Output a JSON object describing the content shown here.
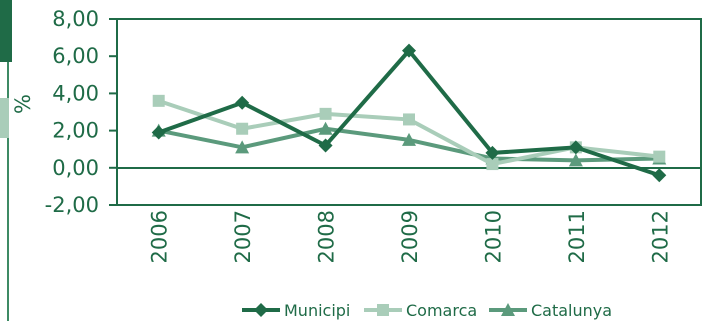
{
  "chart_data": {
    "type": "line",
    "title": "",
    "xlabel": "",
    "ylabel": "%",
    "categories": [
      "2006",
      "2007",
      "2008",
      "2009",
      "2010",
      "2011",
      "2012"
    ],
    "y_ticks": [
      "8,00",
      "6,00",
      "4,00",
      "2,00",
      "0,00",
      "-2,00"
    ],
    "y_tick_values": [
      8,
      6,
      4,
      2,
      0,
      -2
    ],
    "ylim": [
      -2,
      8
    ],
    "grid": false,
    "legend_position": "bottom",
    "series": [
      {
        "name": "Municipi",
        "values": [
          1.9,
          3.5,
          1.2,
          6.3,
          0.8,
          1.1,
          -0.4
        ],
        "color": "#1f6b47",
        "marker": "diamond"
      },
      {
        "name": "Comarca",
        "values": [
          3.6,
          2.1,
          2.9,
          2.6,
          0.2,
          1.1,
          0.6
        ],
        "color": "#a9cdb9",
        "marker": "square"
      },
      {
        "name": "Catalunya",
        "values": [
          2.0,
          1.1,
          2.1,
          1.5,
          0.5,
          0.4,
          0.5
        ],
        "color": "#5b9a7c",
        "marker": "triangle"
      }
    ]
  }
}
